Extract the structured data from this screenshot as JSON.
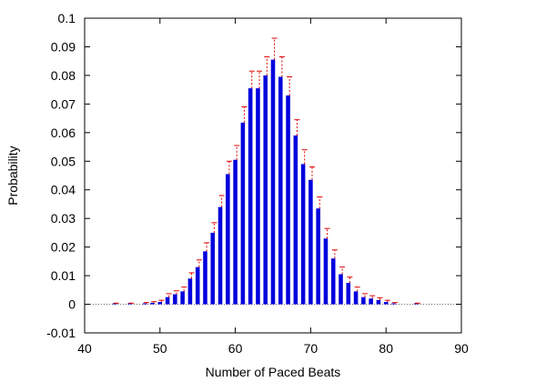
{
  "chart_data": {
    "type": "bar",
    "title": "",
    "xlabel": "Number of Paced Beats",
    "ylabel": "Probability",
    "xlim": [
      40,
      90
    ],
    "ylim": [
      -0.01,
      0.1
    ],
    "x_ticks": [
      "40",
      "50",
      "60",
      "70",
      "80",
      "90"
    ],
    "y_ticks": [
      "-0.01",
      "0",
      "0.01",
      "0.02",
      "0.03",
      "0.04",
      "0.05",
      "0.06",
      "0.07",
      "0.08",
      "0.09",
      "0.1"
    ],
    "grid": false,
    "zero_line": true,
    "series": [
      {
        "color": "#0000dd",
        "error_color": "#dd0000",
        "points": [
          {
            "x": 44,
            "y": 0.0002,
            "err": 0.0002
          },
          {
            "x": 46,
            "y": 0.0002,
            "err": 0.0002
          },
          {
            "x": 48,
            "y": 0.0003,
            "err": 0.0003
          },
          {
            "x": 49,
            "y": 0.0005,
            "err": 0.0004
          },
          {
            "x": 50,
            "y": 0.0008,
            "err": 0.0006
          },
          {
            "x": 51,
            "y": 0.0025,
            "err": 0.0012
          },
          {
            "x": 52,
            "y": 0.0035,
            "err": 0.0012
          },
          {
            "x": 53,
            "y": 0.0045,
            "err": 0.0015
          },
          {
            "x": 54,
            "y": 0.009,
            "err": 0.002
          },
          {
            "x": 55,
            "y": 0.013,
            "err": 0.0025
          },
          {
            "x": 56,
            "y": 0.0185,
            "err": 0.003
          },
          {
            "x": 57,
            "y": 0.025,
            "err": 0.0035
          },
          {
            "x": 58,
            "y": 0.034,
            "err": 0.004
          },
          {
            "x": 59,
            "y": 0.0455,
            "err": 0.0045
          },
          {
            "x": 60,
            "y": 0.0505,
            "err": 0.005
          },
          {
            "x": 61,
            "y": 0.0635,
            "err": 0.0055
          },
          {
            "x": 62,
            "y": 0.0755,
            "err": 0.006
          },
          {
            "x": 63,
            "y": 0.0755,
            "err": 0.006
          },
          {
            "x": 64,
            "y": 0.08,
            "err": 0.0065
          },
          {
            "x": 65,
            "y": 0.0855,
            "err": 0.0075
          },
          {
            "x": 66,
            "y": 0.0795,
            "err": 0.007
          },
          {
            "x": 67,
            "y": 0.073,
            "err": 0.0065
          },
          {
            "x": 68,
            "y": 0.059,
            "err": 0.0055
          },
          {
            "x": 69,
            "y": 0.049,
            "err": 0.005
          },
          {
            "x": 70,
            "y": 0.0435,
            "err": 0.0045
          },
          {
            "x": 71,
            "y": 0.0335,
            "err": 0.004
          },
          {
            "x": 72,
            "y": 0.023,
            "err": 0.0035
          },
          {
            "x": 73,
            "y": 0.016,
            "err": 0.003
          },
          {
            "x": 74,
            "y": 0.0105,
            "err": 0.0025
          },
          {
            "x": 75,
            "y": 0.0075,
            "err": 0.002
          },
          {
            "x": 76,
            "y": 0.0045,
            "err": 0.0015
          },
          {
            "x": 77,
            "y": 0.0025,
            "err": 0.0012
          },
          {
            "x": 78,
            "y": 0.002,
            "err": 0.001
          },
          {
            "x": 79,
            "y": 0.0015,
            "err": 0.0008
          },
          {
            "x": 80,
            "y": 0.0008,
            "err": 0.0006
          },
          {
            "x": 81,
            "y": 0.0003,
            "err": 0.0003
          },
          {
            "x": 84,
            "y": 0.0002,
            "err": 0.0002
          }
        ]
      }
    ]
  }
}
